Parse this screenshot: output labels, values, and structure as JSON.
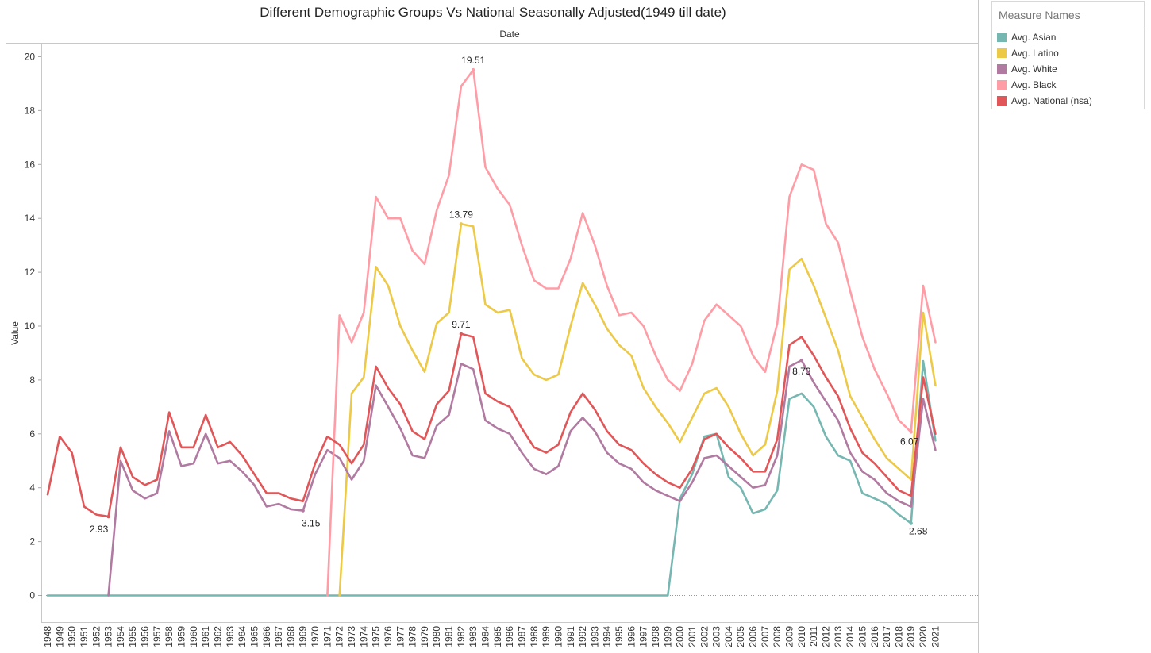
{
  "chart_data": {
    "type": "line",
    "title": "Different Demographic Groups Vs National Seasonally Adjusted(1949 till date)",
    "column_header": "Date",
    "ylabel": "Value",
    "ylim": [
      0,
      21
    ],
    "yticks": [
      0,
      2,
      4,
      6,
      8,
      10,
      12,
      14,
      16,
      18,
      20
    ],
    "x": [
      1948,
      1949,
      1950,
      1951,
      1952,
      1953,
      1954,
      1955,
      1956,
      1957,
      1958,
      1959,
      1960,
      1961,
      1962,
      1963,
      1964,
      1965,
      1966,
      1967,
      1968,
      1969,
      1970,
      1971,
      1972,
      1973,
      1974,
      1975,
      1976,
      1977,
      1978,
      1979,
      1980,
      1981,
      1982,
      1983,
      1984,
      1985,
      1986,
      1987,
      1988,
      1989,
      1990,
      1991,
      1992,
      1993,
      1994,
      1995,
      1996,
      1997,
      1998,
      1999,
      2000,
      2001,
      2002,
      2003,
      2004,
      2005,
      2006,
      2007,
      2008,
      2009,
      2010,
      2011,
      2012,
      2013,
      2014,
      2015,
      2016,
      2017,
      2018,
      2019,
      2020,
      2021
    ],
    "legend_title": "Measure Names",
    "legend_position": "right",
    "series": [
      {
        "name": "Avg. Asian",
        "color": "#76b7b2",
        "values": [
          0,
          0,
          0,
          0,
          0,
          0,
          0,
          0,
          0,
          0,
          0,
          0,
          0,
          0,
          0,
          0,
          0,
          0,
          0,
          0,
          0,
          0,
          0,
          0,
          0,
          0,
          0,
          0,
          0,
          0,
          0,
          0,
          0,
          0,
          0,
          0,
          0,
          0,
          0,
          0,
          0,
          0,
          0,
          0,
          0,
          0,
          0,
          0,
          0,
          0,
          0,
          0,
          3.6,
          4.5,
          5.9,
          6.0,
          4.4,
          4.0,
          3.05,
          3.2,
          3.9,
          7.3,
          7.5,
          7.0,
          5.9,
          5.2,
          5.0,
          3.8,
          3.6,
          3.4,
          3.0,
          2.68,
          8.7,
          5.75
        ]
      },
      {
        "name": "Avg. Latino",
        "color": "#edc948",
        "values": [
          null,
          null,
          null,
          null,
          null,
          null,
          null,
          null,
          null,
          null,
          null,
          null,
          null,
          null,
          null,
          null,
          null,
          null,
          null,
          null,
          null,
          null,
          null,
          null,
          0,
          7.5,
          8.1,
          12.2,
          11.5,
          10.0,
          9.1,
          8.3,
          10.1,
          10.5,
          13.79,
          13.7,
          10.8,
          10.5,
          10.6,
          8.8,
          8.2,
          8.0,
          8.2,
          10.0,
          11.6,
          10.8,
          9.9,
          9.3,
          8.9,
          7.7,
          7.0,
          6.4,
          5.7,
          6.6,
          7.5,
          7.7,
          7.0,
          6.0,
          5.2,
          5.6,
          7.6,
          12.1,
          12.5,
          11.5,
          10.3,
          9.1,
          7.4,
          6.6,
          5.8,
          5.1,
          4.7,
          4.3,
          10.5,
          7.8
        ]
      },
      {
        "name": "Avg. White",
        "color": "#b07aa1",
        "values": [
          null,
          null,
          null,
          null,
          null,
          0,
          5.0,
          3.9,
          3.6,
          3.8,
          6.1,
          4.8,
          4.9,
          6.0,
          4.9,
          5.0,
          4.6,
          4.1,
          3.3,
          3.4,
          3.2,
          3.15,
          4.5,
          5.4,
          5.1,
          4.3,
          5.0,
          7.8,
          7.0,
          6.2,
          5.2,
          5.1,
          6.3,
          6.7,
          8.6,
          8.4,
          6.5,
          6.2,
          6.0,
          5.3,
          4.7,
          4.5,
          4.8,
          6.1,
          6.6,
          6.1,
          5.3,
          4.9,
          4.7,
          4.2,
          3.9,
          3.7,
          3.5,
          4.2,
          5.1,
          5.2,
          4.8,
          4.4,
          4.0,
          4.1,
          5.2,
          8.5,
          8.73,
          7.9,
          7.2,
          6.5,
          5.3,
          4.6,
          4.3,
          3.8,
          3.5,
          3.3,
          7.3,
          5.4
        ]
      },
      {
        "name": "Avg. Black",
        "color": "#ff9da7",
        "values": [
          null,
          null,
          null,
          null,
          null,
          null,
          null,
          null,
          null,
          null,
          null,
          null,
          null,
          null,
          null,
          null,
          null,
          null,
          null,
          null,
          null,
          null,
          null,
          0,
          10.4,
          9.4,
          10.5,
          14.8,
          14.0,
          14.0,
          12.8,
          12.3,
          14.3,
          15.6,
          18.9,
          19.51,
          15.9,
          15.1,
          14.5,
          13.0,
          11.7,
          11.4,
          11.4,
          12.5,
          14.2,
          13.0,
          11.5,
          10.4,
          10.5,
          10.0,
          8.9,
          8.0,
          7.6,
          8.6,
          10.2,
          10.8,
          10.4,
          10.0,
          8.9,
          8.3,
          10.1,
          14.8,
          16.0,
          15.8,
          13.8,
          13.1,
          11.3,
          9.6,
          8.4,
          7.5,
          6.5,
          6.07,
          11.5,
          9.4
        ]
      },
      {
        "name": "Avg. National (nsa)",
        "color": "#e15759",
        "values": [
          3.75,
          5.9,
          5.3,
          3.3,
          3.0,
          2.93,
          5.5,
          4.4,
          4.1,
          4.3,
          6.8,
          5.5,
          5.5,
          6.7,
          5.5,
          5.7,
          5.2,
          4.5,
          3.8,
          3.8,
          3.6,
          3.5,
          4.9,
          5.9,
          5.6,
          4.9,
          5.6,
          8.5,
          7.7,
          7.1,
          6.1,
          5.8,
          7.1,
          7.6,
          9.71,
          9.6,
          7.5,
          7.2,
          7.0,
          6.2,
          5.5,
          5.3,
          5.6,
          6.8,
          7.5,
          6.9,
          6.1,
          5.6,
          5.4,
          4.9,
          4.5,
          4.2,
          4.0,
          4.7,
          5.8,
          6.0,
          5.5,
          5.1,
          4.6,
          4.6,
          5.8,
          9.3,
          9.6,
          8.9,
          8.1,
          7.4,
          6.2,
          5.3,
          4.9,
          4.4,
          3.9,
          3.7,
          8.1,
          6.0
        ]
      }
    ],
    "annotations": [
      {
        "series": "Avg. Black",
        "x": 1983,
        "label": "19.51"
      },
      {
        "series": "Avg. Latino",
        "x": 1982,
        "label": "13.79"
      },
      {
        "series": "Avg. National (nsa)",
        "x": 1982,
        "label": "9.71"
      },
      {
        "series": "Avg. National (nsa)",
        "x": 1953,
        "label": "2.93"
      },
      {
        "series": "Avg. White",
        "x": 1969,
        "label": "3.15"
      },
      {
        "series": "Avg. White",
        "x": 2010,
        "label": "8.73"
      },
      {
        "series": "Avg. Black",
        "x": 2019,
        "label": "6.07"
      },
      {
        "series": "Avg. Asian",
        "x": 2019,
        "label": "2.68"
      }
    ]
  }
}
